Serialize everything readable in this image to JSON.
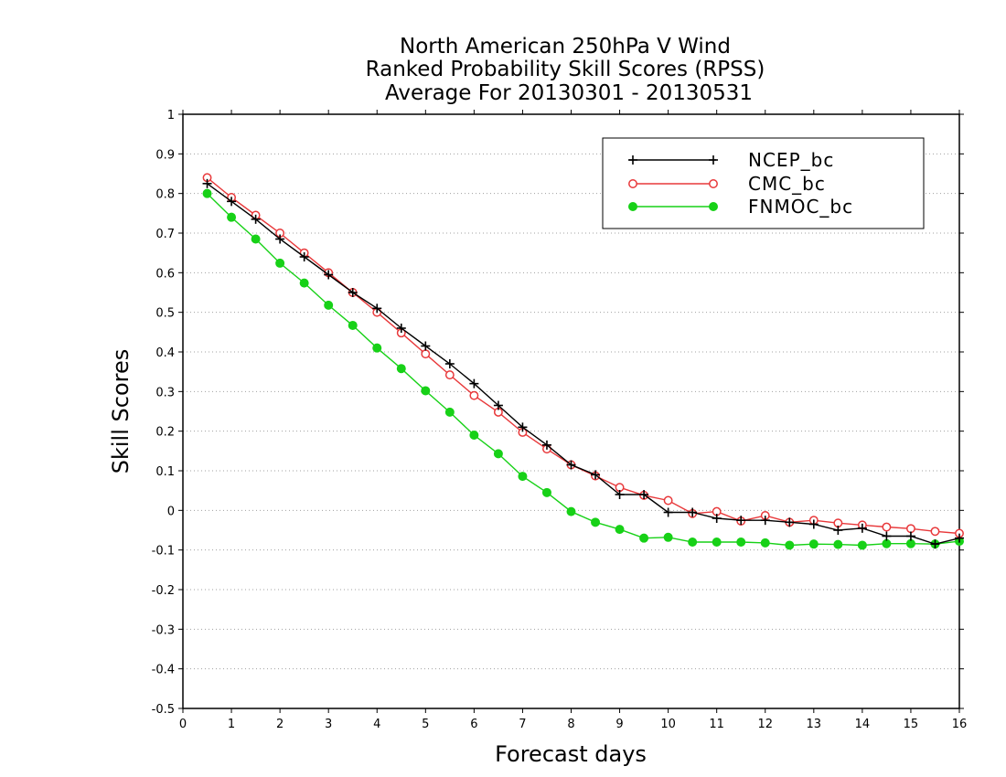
{
  "chart_data": {
    "type": "line",
    "title": [
      "North American 250hPa V Wind",
      "Ranked Probability Skill Scores (RPSS)",
      "Average For 20130301 - 20130531"
    ],
    "xlabel": "Forecast days",
    "ylabel": "Skill Scores",
    "xlim": [
      0,
      16
    ],
    "ylim": [
      -0.5,
      1
    ],
    "x_ticks": [
      "0",
      "1",
      "2",
      "3",
      "4",
      "5",
      "6",
      "7",
      "8",
      "9",
      "10",
      "11",
      "12",
      "13",
      "14",
      "15",
      "16"
    ],
    "y_ticks": [
      "1",
      "0.9",
      "0.8",
      "0.7",
      "0.6",
      "0.5",
      "0.4",
      "0.3",
      "0.2",
      "0.1",
      "0",
      "-0.1",
      "-0.2",
      "-0.3",
      "-0.4",
      "-0.5"
    ],
    "grid": "horizontal dotted",
    "legend_position": "top-right",
    "x": [
      0.5,
      1,
      1.5,
      2,
      2.5,
      3,
      3.5,
      4,
      4.5,
      5,
      5.5,
      6,
      6.5,
      7,
      7.5,
      8,
      8.5,
      9,
      9.5,
      10,
      10.5,
      11,
      11.5,
      12,
      12.5,
      13,
      13.5,
      14,
      14.5,
      15,
      15.5,
      16
    ],
    "series": [
      {
        "name": "NCEP_bc",
        "color": "#000000",
        "marker": "plus",
        "values": [
          0.825,
          0.78,
          0.735,
          0.685,
          0.64,
          0.595,
          0.55,
          0.51,
          0.46,
          0.415,
          0.37,
          0.32,
          0.265,
          0.21,
          0.165,
          0.115,
          0.09,
          0.04,
          0.04,
          -0.005,
          -0.005,
          -0.02,
          -0.025,
          -0.025,
          -0.03,
          -0.035,
          -0.05,
          -0.045,
          -0.065,
          -0.065,
          -0.085,
          -0.07
        ]
      },
      {
        "name": "CMC_bc",
        "color": "#e8383a",
        "marker": "open-circle",
        "values": [
          0.84,
          0.79,
          0.745,
          0.7,
          0.65,
          0.6,
          0.55,
          0.5,
          0.448,
          0.395,
          0.342,
          0.29,
          0.248,
          0.197,
          0.155,
          0.115,
          0.087,
          0.058,
          0.038,
          0.025,
          -0.008,
          -0.003,
          -0.027,
          -0.013,
          -0.03,
          -0.025,
          -0.032,
          -0.037,
          -0.042,
          -0.046,
          -0.053,
          -0.058
        ]
      },
      {
        "name": "FNMOC_bc",
        "color": "#17d117",
        "marker": "filled-circle",
        "values": [
          0.8,
          0.74,
          0.685,
          0.624,
          0.574,
          0.518,
          0.467,
          0.41,
          0.358,
          0.302,
          0.248,
          0.19,
          0.143,
          0.086,
          0.045,
          -0.003,
          -0.03,
          -0.048,
          -0.07,
          -0.068,
          -0.08,
          -0.08,
          -0.08,
          -0.082,
          -0.088,
          -0.085,
          -0.086,
          -0.088,
          -0.084,
          -0.084,
          -0.085,
          -0.078
        ]
      }
    ]
  }
}
